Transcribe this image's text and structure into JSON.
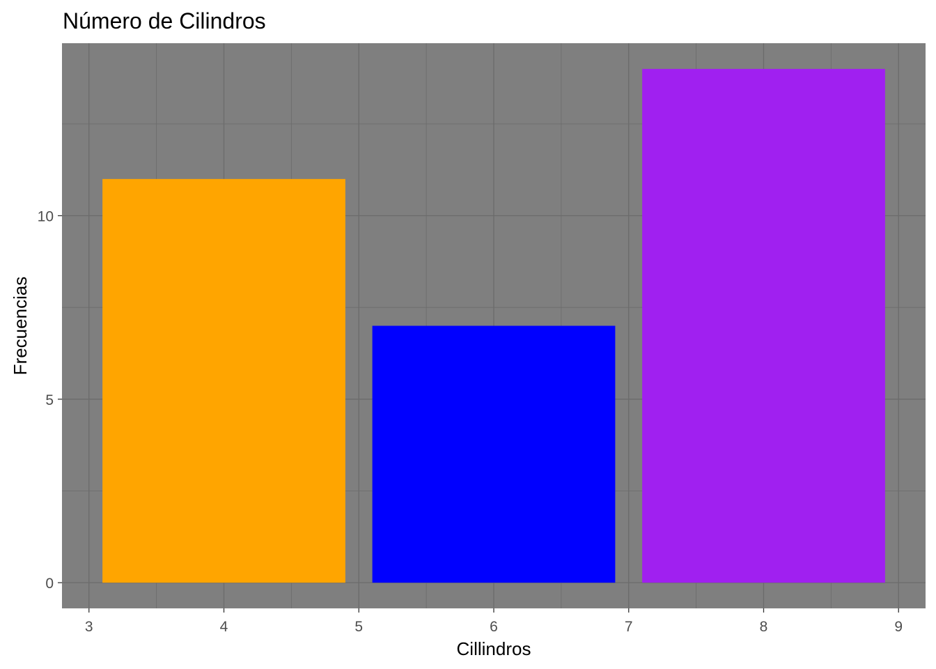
{
  "chart_data": {
    "type": "bar",
    "title": "Número de Cilindros",
    "xlabel": "Cillindros",
    "ylabel": "Frecuencias",
    "categories": [
      4,
      6,
      8
    ],
    "values": [
      11,
      7,
      14
    ],
    "bar_colors": [
      "#FFA500",
      "#0000FF",
      "#A020F0"
    ],
    "bar_width": 1.8,
    "xlim": [
      2.8,
      9.2
    ],
    "ylim": [
      -0.7,
      14.7
    ],
    "x_ticks": [
      3,
      4,
      5,
      6,
      7,
      8,
      9
    ],
    "y_ticks": [
      0,
      5,
      10
    ],
    "y_minor_grid": [
      2.5,
      7.5,
      12.5
    ],
    "x_minor_grid": [
      3.5,
      4.5,
      5.5,
      6.5,
      7.5,
      8.5
    ],
    "grid": true,
    "legend": "none",
    "panel_background": "#7F7F7F",
    "grid_color": "#6b6b6b"
  }
}
